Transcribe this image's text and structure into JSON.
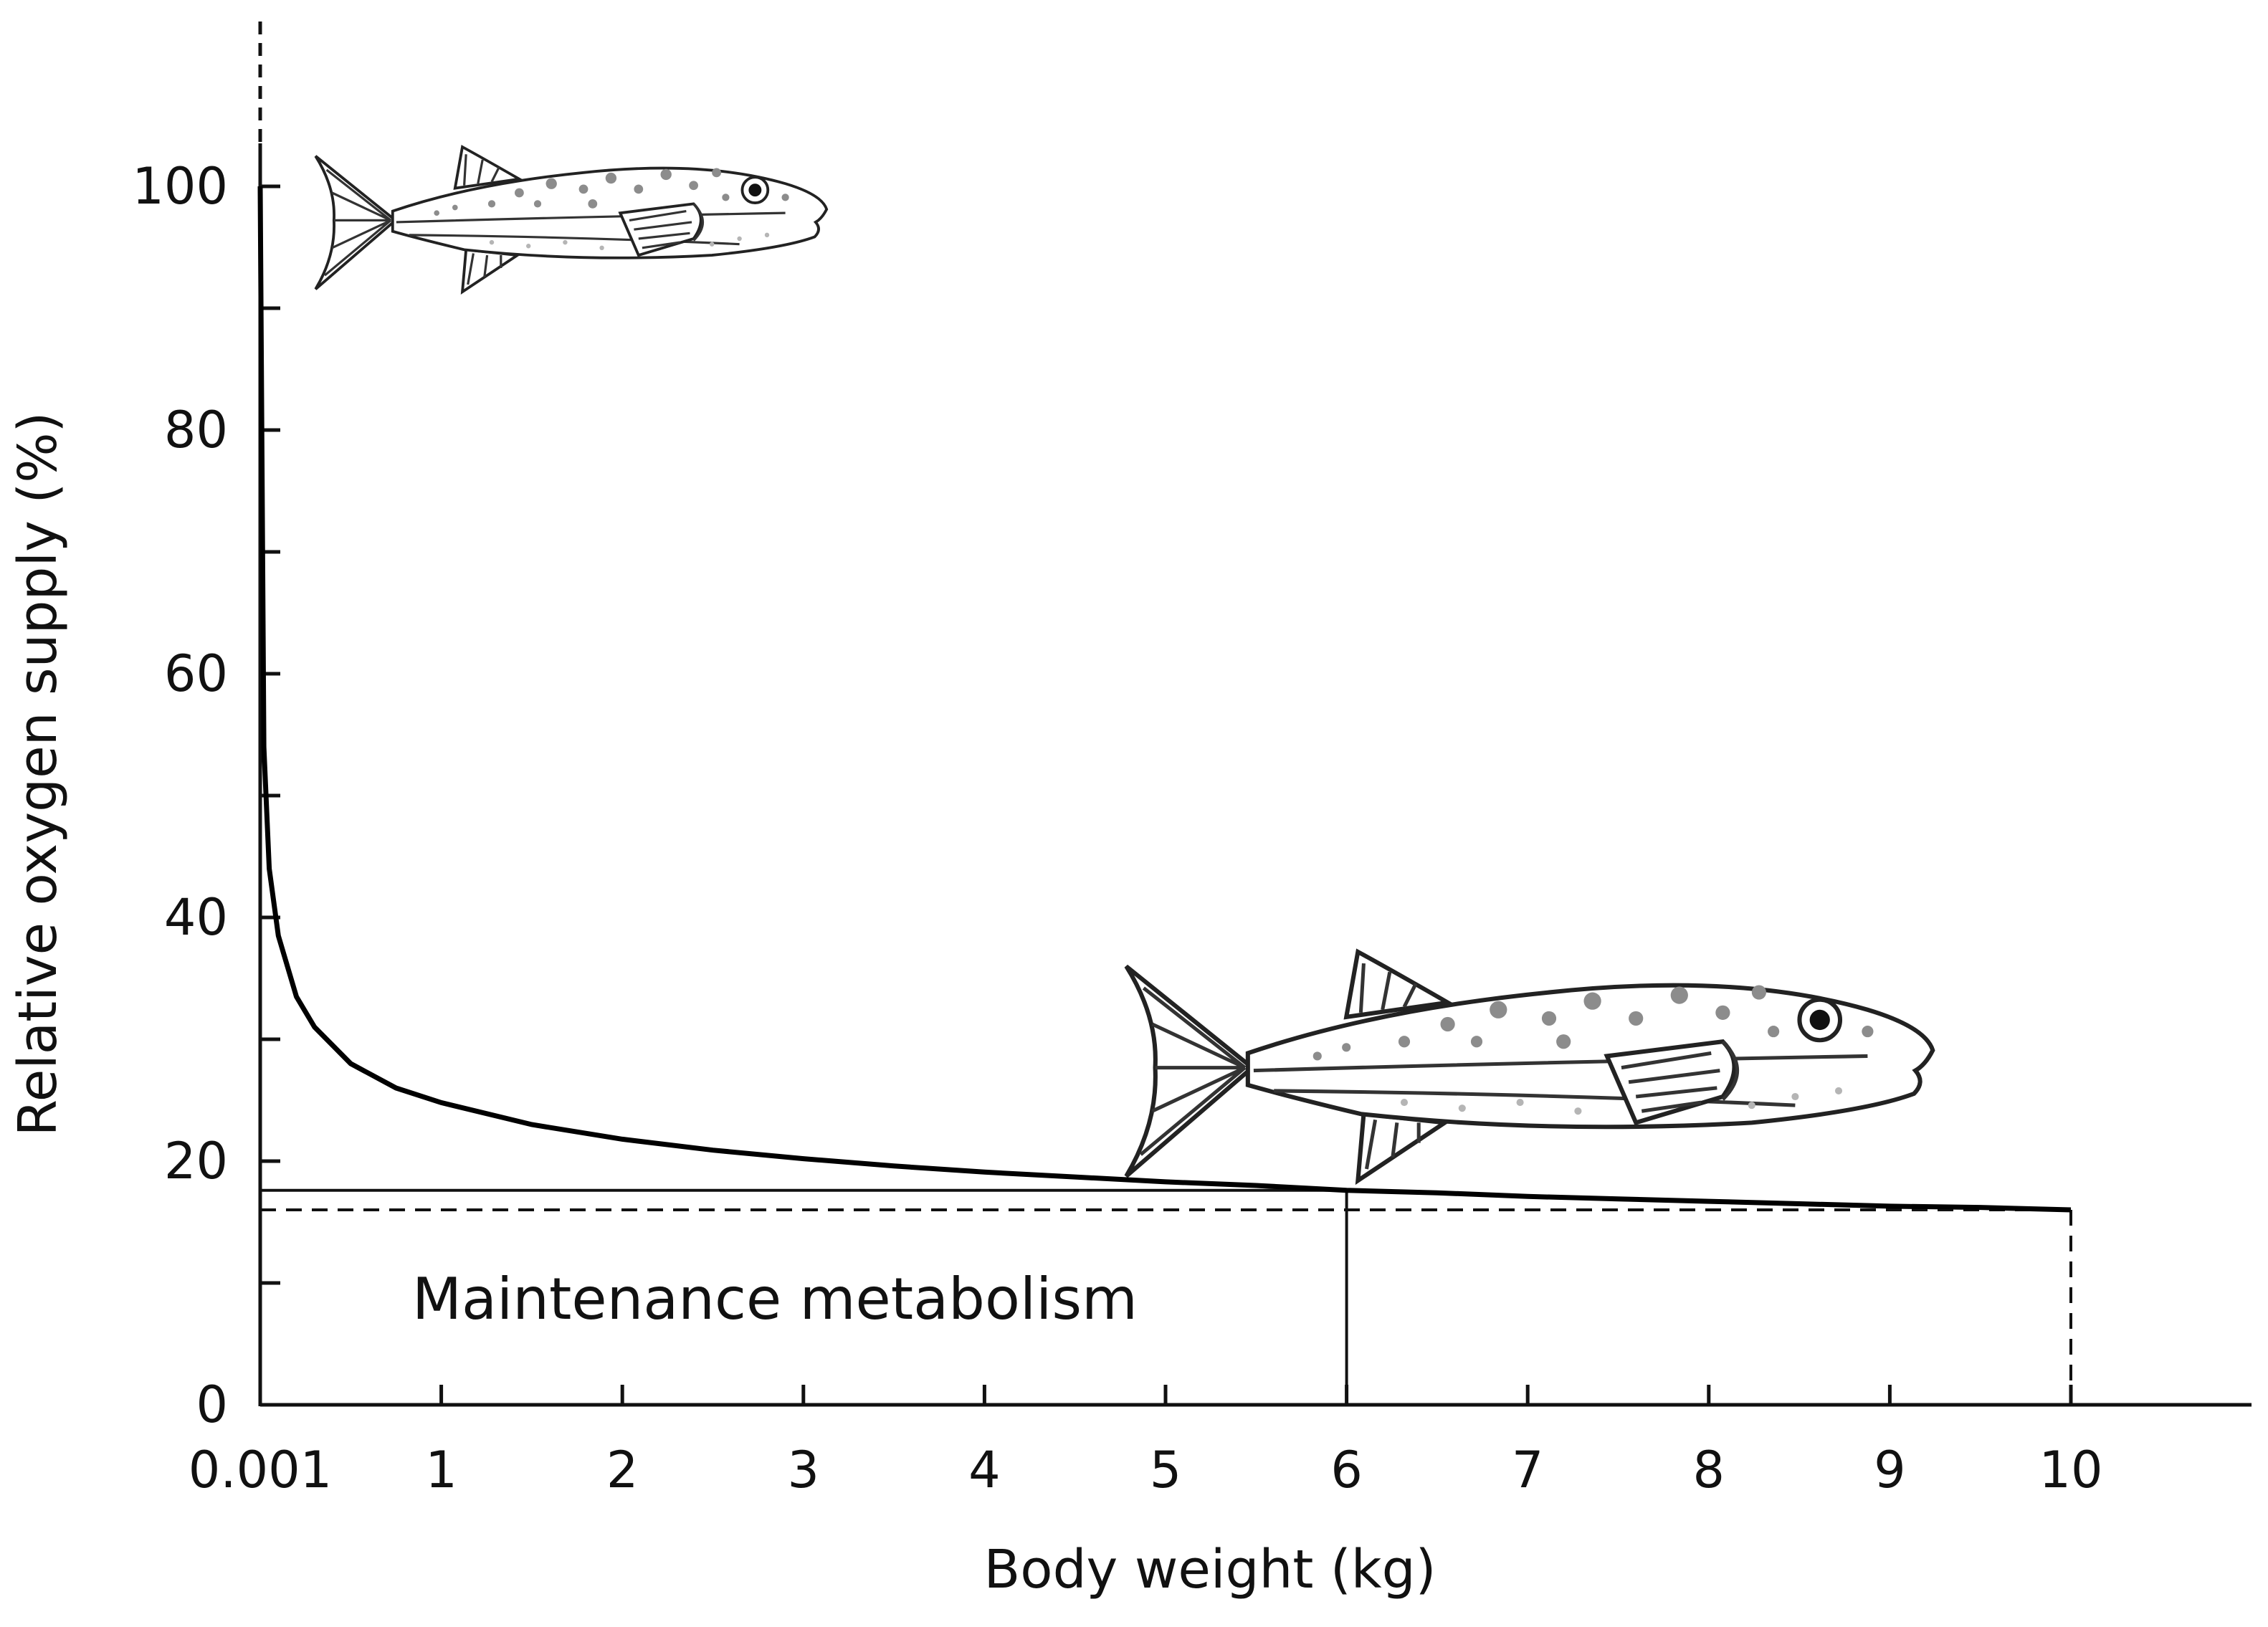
{
  "chart_data": {
    "type": "line",
    "title": "",
    "xlabel": "Body weight (kg)",
    "ylabel": "Relative oxygen supply (%)",
    "x_ticks": [
      "0.001",
      "1",
      "2",
      "3",
      "4",
      "5",
      "6",
      "7",
      "8",
      "9",
      "10"
    ],
    "y_ticks": [
      "0",
      "20",
      "40",
      "60",
      "80",
      "100"
    ],
    "xlim": [
      0,
      11
    ],
    "ylim": [
      0,
      113
    ],
    "grid": false,
    "legend": "none",
    "series": [
      {
        "x": [
          0.001,
          0.02,
          0.05,
          0.1,
          0.2,
          0.3,
          0.5,
          0.75,
          1,
          1.5,
          2,
          2.5,
          3,
          3.5,
          4,
          4.5,
          5,
          5.5,
          6,
          6.5,
          7,
          7.5,
          8,
          8.5,
          9,
          9.5,
          10
        ],
        "y": [
          100,
          54,
          44,
          38.5,
          33.5,
          31,
          28,
          26,
          24.8,
          23,
          21.8,
          20.9,
          20.2,
          19.6,
          19.1,
          18.7,
          18.3,
          18,
          17.6,
          17.4,
          17.1,
          16.9,
          16.7,
          16.5,
          16.3,
          16.2,
          16
        ]
      }
    ],
    "reference_lines": [
      {
        "style": "solid",
        "x": 6,
        "y": 17.6
      },
      {
        "style": "dashed",
        "x": 10,
        "y": 16
      }
    ],
    "annotations": [
      {
        "text": "Maintenance metabolism"
      }
    ]
  },
  "illustrations": [
    {
      "icon": "small-fish-icon"
    },
    {
      "icon": "large-fish-icon"
    }
  ]
}
